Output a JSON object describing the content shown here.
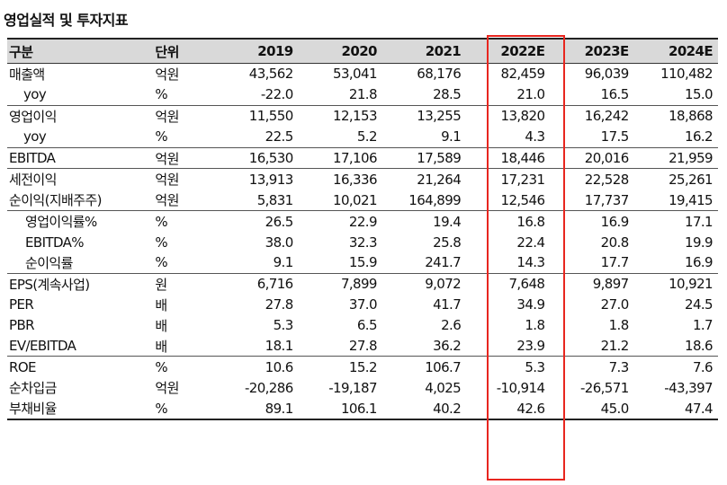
{
  "title": "영업실적 및 투자지표",
  "headers": [
    "구분",
    "단위",
    "2019",
    "2020",
    "2021",
    "2022E",
    "2023E",
    "2024E"
  ],
  "rows": [
    {
      "label": "매출액",
      "unit": "억원",
      "values": [
        "43,562",
        "53,041",
        "68,176",
        "82,459",
        "96,039",
        "110,482"
      ]
    },
    {
      "label": "yoy",
      "unit": "%",
      "values": [
        "-22.0",
        "21.8",
        "28.5",
        "21.0",
        "16.5",
        "15.0"
      ]
    },
    {
      "label": "영업이익",
      "unit": "억원",
      "values": [
        "11,550",
        "12,153",
        "13,255",
        "13,820",
        "16,242",
        "18,868"
      ]
    },
    {
      "label": "yoy",
      "unit": "%",
      "values": [
        "22.5",
        "5.2",
        "9.1",
        "4.3",
        "17.5",
        "16.2"
      ]
    },
    {
      "label": "EBITDA",
      "unit": "억원",
      "values": [
        "16,530",
        "17,106",
        "17,589",
        "18,446",
        "20,016",
        "21,959"
      ]
    },
    {
      "label": "세전이익",
      "unit": "억원",
      "values": [
        "13,913",
        "16,336",
        "21,264",
        "17,231",
        "22,528",
        "25,261"
      ]
    },
    {
      "label": "순이익(지배주주)",
      "unit": "억원",
      "values": [
        "5,831",
        "10,021",
        "164,899",
        "12,546",
        "17,737",
        "19,415"
      ]
    },
    {
      "label": "영업이익률%",
      "unit": "%",
      "values": [
        "26.5",
        "22.9",
        "19.4",
        "16.8",
        "16.9",
        "17.1"
      ]
    },
    {
      "label": "EBITDA%",
      "unit": "%",
      "values": [
        "38.0",
        "32.3",
        "25.8",
        "22.4",
        "20.8",
        "19.9"
      ]
    },
    {
      "label": "순이익률",
      "unit": "%",
      "values": [
        "9.1",
        "15.9",
        "241.7",
        "14.3",
        "17.7",
        "16.9"
      ]
    },
    {
      "label": "EPS(계속사업)",
      "unit": "원",
      "values": [
        "6,716",
        "7,899",
        "9,072",
        "7,648",
        "9,897",
        "10,921"
      ]
    },
    {
      "label": "PER",
      "unit": "배",
      "values": [
        "27.8",
        "37.0",
        "41.7",
        "34.9",
        "27.0",
        "24.5"
      ]
    },
    {
      "label": "PBR",
      "unit": "배",
      "values": [
        "5.3",
        "6.5",
        "2.6",
        "1.8",
        "1.8",
        "1.7"
      ]
    },
    {
      "label": "EV/EBITDA",
      "unit": "배",
      "values": [
        "18.1",
        "27.8",
        "36.2",
        "23.9",
        "21.2",
        "18.6"
      ]
    },
    {
      "label": "ROE",
      "unit": "%",
      "values": [
        "10.6",
        "15.2",
        "106.7",
        "5.3",
        "7.3",
        "7.6"
      ]
    },
    {
      "label": "순차입금",
      "unit": "억원",
      "values": [
        "-20,286",
        "-19,187",
        "4,025",
        "-10,914",
        "-26,571",
        "-43,397"
      ]
    },
    {
      "label": "부채비율",
      "unit": "%",
      "values": [
        "89.1",
        "106.1",
        "40.2",
        "42.6",
        "45.0",
        "47.4"
      ]
    }
  ],
  "highlight_color": "#e8261f"
}
